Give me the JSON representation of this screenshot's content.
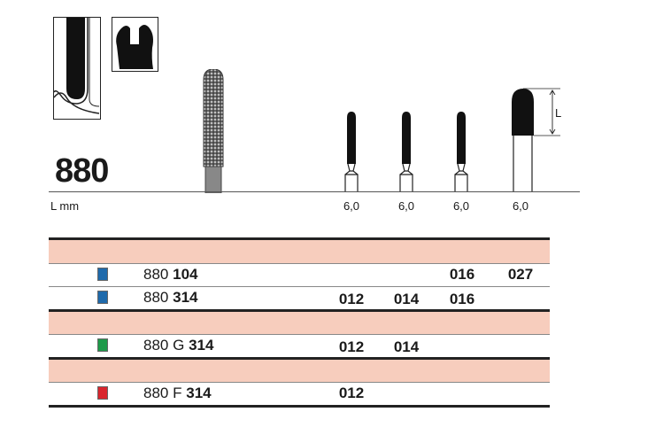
{
  "product": {
    "title": "880"
  },
  "length_label": "L mm",
  "dimension_label": "L",
  "lengths": [
    "6,0",
    "6,0",
    "6,0",
    "6,0"
  ],
  "colors": {
    "blue": "#1f6aab",
    "green": "#1e9a4a",
    "red": "#d9262e",
    "header_band": "#f7cdbd"
  },
  "rows": [
    {
      "prefix": "880",
      "letter": "",
      "shank": "104",
      "color": "#1f6aab",
      "sizes": [
        "",
        "",
        "016",
        "027"
      ]
    },
    {
      "prefix": "880",
      "letter": "",
      "shank": "314",
      "color": "#1f6aab",
      "sizes": [
        "012",
        "014",
        "016",
        ""
      ]
    },
    {
      "prefix": "880",
      "letter": "G",
      "shank": "314",
      "color": "#1e9a4a",
      "sizes": [
        "012",
        "014",
        "",
        ""
      ]
    },
    {
      "prefix": "880",
      "letter": "F",
      "shank": "314",
      "color": "#d9262e",
      "sizes": [
        "012",
        "",
        "",
        ""
      ]
    }
  ]
}
